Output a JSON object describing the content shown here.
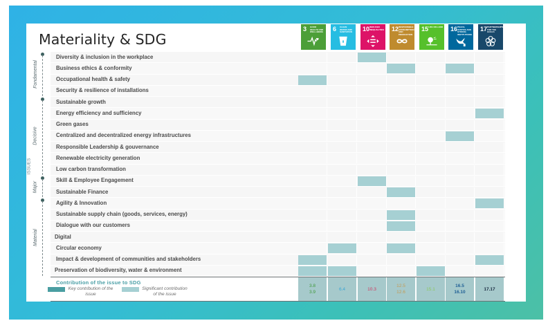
{
  "title": "Materiality & SDG",
  "axis_label": "ISSUES",
  "categories": [
    {
      "name": "Fondamental",
      "rows": [
        0,
        3
      ]
    },
    {
      "name": "Decisive",
      "rows": [
        4,
        10
      ]
    },
    {
      "name": "Major",
      "rows": [
        11,
        12
      ]
    },
    {
      "name": "Material",
      "rows": [
        13,
        19
      ]
    }
  ],
  "sdgs": [
    {
      "number": "3",
      "caption": "Good health and well-being",
      "color": "#4c9f38",
      "icon": "heartbeat-icon"
    },
    {
      "number": "6",
      "caption": "Clean water and sanitation",
      "color": "#26bde2",
      "icon": "water-drop-icon"
    },
    {
      "number": "10",
      "caption": "Reduced inequalities",
      "color": "#dd1367",
      "icon": "equality-arrows-icon"
    },
    {
      "number": "12",
      "caption": "Responsible consumption and production",
      "color": "#bf8b2e",
      "icon": "infinity-icon"
    },
    {
      "number": "15",
      "caption": "Life on land",
      "color": "#56c02b",
      "icon": "tree-icon"
    },
    {
      "number": "16",
      "caption": "Peace, justice and strong institutions",
      "color": "#00689d",
      "icon": "dove-icon"
    },
    {
      "number": "17",
      "caption": "Partnerships for the goals",
      "color": "#19486a",
      "icon": "flower-rings-icon"
    }
  ],
  "issues": [
    {
      "label": "Diversity & inclusion in the workplace",
      "significant": [
        2
      ],
      "key": []
    },
    {
      "label": "Business ethics & conformity",
      "significant": [
        3,
        5
      ],
      "key": []
    },
    {
      "label": "Occupational health & safety",
      "significant": [
        0
      ],
      "key": []
    },
    {
      "label": "Security & resilience of installations",
      "significant": [],
      "key": []
    },
    {
      "label": "Sustainable growth",
      "significant": [],
      "key": []
    },
    {
      "label": "Energy efficiency and sufficiency",
      "significant": [
        6
      ],
      "key": []
    },
    {
      "label": "Green gases",
      "significant": [],
      "key": []
    },
    {
      "label": "Centralized and decentralized energy infrastructures",
      "significant": [
        5
      ],
      "key": []
    },
    {
      "label": "Responsible Leadership & gouvernance",
      "significant": [],
      "key": []
    },
    {
      "label": "Renewable electricity generation",
      "significant": [],
      "key": []
    },
    {
      "label": "Low carbon transformation",
      "significant": [],
      "key": []
    },
    {
      "label": "Skill & Employee Engagement",
      "significant": [
        2
      ],
      "key": []
    },
    {
      "label": "Sustainable Finance",
      "significant": [
        3
      ],
      "key": []
    },
    {
      "label": "Agility & Innovation",
      "significant": [
        6
      ],
      "key": []
    },
    {
      "label": "Sustainable supply chain (goods, services, energy)",
      "significant": [
        3
      ],
      "key": []
    },
    {
      "label": "Dialogue with our customers",
      "significant": [
        3
      ],
      "key": []
    },
    {
      "label": "Digital",
      "significant": [],
      "key": []
    },
    {
      "label": "Circular economy",
      "significant": [
        1,
        3
      ],
      "key": []
    },
    {
      "label": "Impact & development of communities and stakeholders",
      "significant": [
        0,
        6
      ],
      "key": []
    },
    {
      "label": "Preservation of biodiversity, water & environment",
      "significant": [
        0,
        1,
        4
      ],
      "key": []
    }
  ],
  "footer": {
    "contribution_title": "Contribution of the issue to SDG",
    "legend": {
      "key_label": "Key contribution of the issue",
      "key_color": "#4a9ea2",
      "significant_label": "Significant contribution of the issue",
      "significant_color": "#a6d0d3"
    },
    "targets": [
      {
        "lines": [
          "3.8",
          "3.9"
        ],
        "color": "#3f9a3a"
      },
      {
        "lines": [
          "6.4"
        ],
        "color": "#3aa6d6"
      },
      {
        "lines": [
          "10.3"
        ],
        "color": "#d1365e"
      },
      {
        "lines": [
          "12.5",
          "12.6"
        ],
        "color": "#c49a52"
      },
      {
        "lines": [
          "15.1"
        ],
        "color": "#8cc95c"
      },
      {
        "lines": [
          "16.5",
          "16.10"
        ],
        "color": "#1f5f95"
      },
      {
        "lines": [
          "17.17"
        ],
        "color": "#1a2a40"
      }
    ]
  }
}
